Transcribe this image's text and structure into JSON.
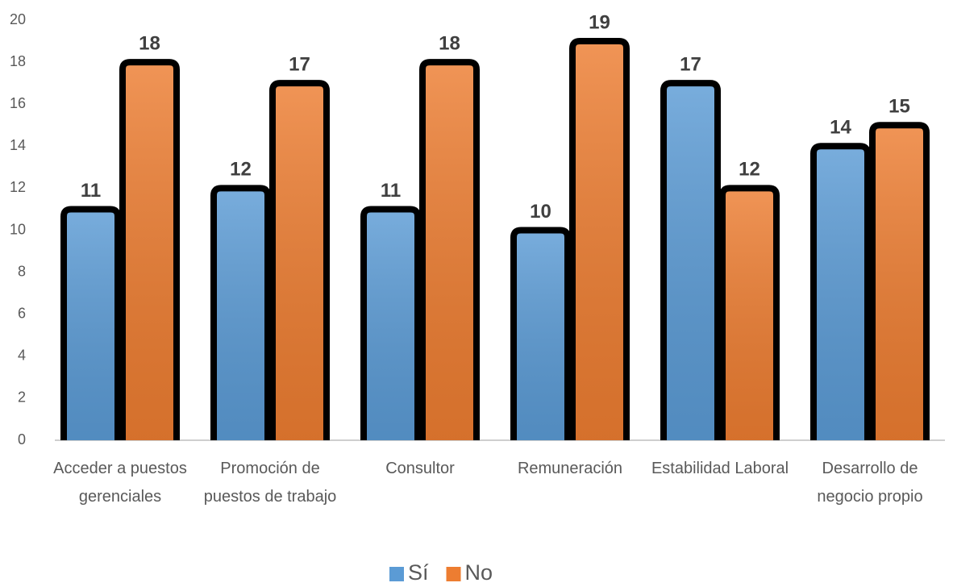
{
  "chart_data": {
    "type": "bar",
    "categories": [
      "Acceder a puestos gerenciales",
      "Promoción de puestos de trabajo",
      "Consultor",
      "Remuneración",
      "Estabilidad Laboral",
      "Desarrollo de negocio propio"
    ],
    "series": [
      {
        "name": "Sí",
        "color": "#5b9bd5",
        "values": [
          11,
          12,
          11,
          10,
          17,
          14
        ]
      },
      {
        "name": "No",
        "color": "#ed7d31",
        "values": [
          18,
          17,
          18,
          19,
          12,
          15
        ]
      }
    ],
    "ylim": [
      0,
      20
    ],
    "yticks": [
      0,
      2,
      4,
      6,
      8,
      10,
      12,
      14,
      16,
      18,
      20
    ],
    "grid": false,
    "legend": "bottom"
  }
}
